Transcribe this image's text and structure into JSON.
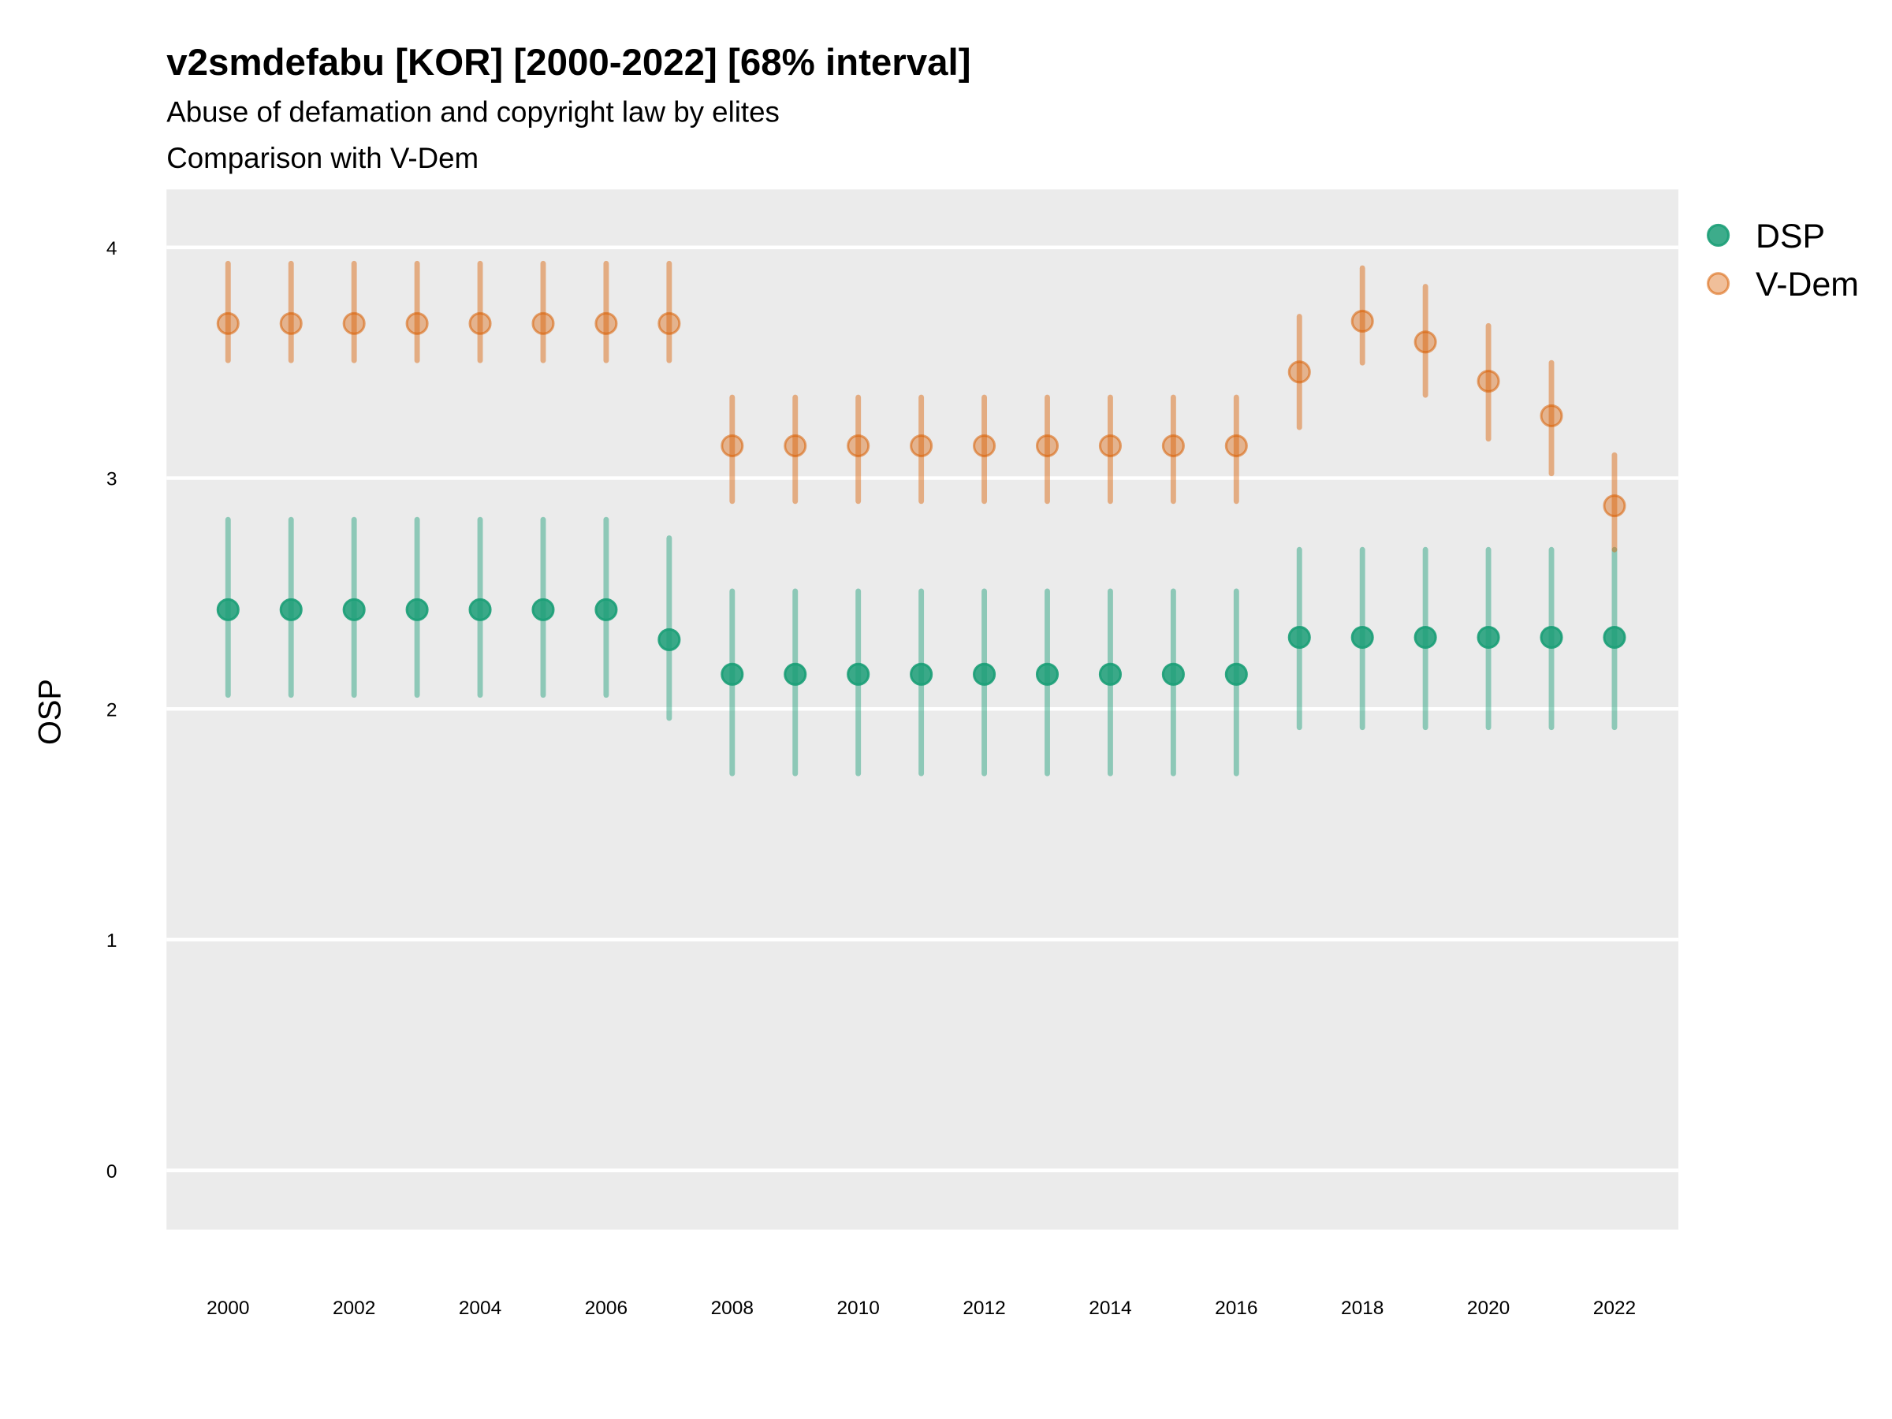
{
  "chart_data": {
    "type": "scatter",
    "title": "v2smdefabu [KOR] [2000-2022] [68% interval]",
    "subtitle": [
      "Abuse of defamation and copyright law by elites",
      "Comparison with V-Dem"
    ],
    "xlabel": "",
    "ylabel": "OSP",
    "ylim": [
      -0.25,
      4.25
    ],
    "yticks": [
      0,
      1,
      2,
      3,
      4
    ],
    "xticks": [
      2000,
      2002,
      2004,
      2006,
      2008,
      2010,
      2012,
      2014,
      2016,
      2018,
      2020,
      2022
    ],
    "grid": true,
    "legend_position": "right",
    "x": [
      2000,
      2001,
      2002,
      2003,
      2004,
      2005,
      2006,
      2007,
      2008,
      2009,
      2010,
      2011,
      2012,
      2013,
      2014,
      2015,
      2016,
      2017,
      2018,
      2019,
      2020,
      2021,
      2022
    ],
    "series": [
      {
        "name": "DSP",
        "color": "#1b9e77",
        "values": [
          2.43,
          2.43,
          2.43,
          2.43,
          2.43,
          2.43,
          2.43,
          2.3,
          2.15,
          2.15,
          2.15,
          2.15,
          2.15,
          2.15,
          2.15,
          2.15,
          2.15,
          2.31,
          2.31,
          2.31,
          2.31,
          2.31,
          2.31
        ],
        "lower": [
          2.06,
          2.06,
          2.06,
          2.06,
          2.06,
          2.06,
          2.06,
          1.96,
          1.72,
          1.72,
          1.72,
          1.72,
          1.72,
          1.72,
          1.72,
          1.72,
          1.72,
          1.92,
          1.92,
          1.92,
          1.92,
          1.92,
          1.92
        ],
        "upper": [
          2.82,
          2.82,
          2.82,
          2.82,
          2.82,
          2.82,
          2.82,
          2.74,
          2.51,
          2.51,
          2.51,
          2.51,
          2.51,
          2.51,
          2.51,
          2.51,
          2.51,
          2.69,
          2.69,
          2.69,
          2.69,
          2.69,
          2.69
        ]
      },
      {
        "name": "V-Dem",
        "color": "#d95f02",
        "values": [
          3.67,
          3.67,
          3.67,
          3.67,
          3.67,
          3.67,
          3.67,
          3.67,
          3.14,
          3.14,
          3.14,
          3.14,
          3.14,
          3.14,
          3.14,
          3.14,
          3.14,
          3.46,
          3.68,
          3.59,
          3.42,
          3.27,
          2.88
        ],
        "lower": [
          3.51,
          3.51,
          3.51,
          3.51,
          3.51,
          3.51,
          3.51,
          3.51,
          2.9,
          2.9,
          2.9,
          2.9,
          2.9,
          2.9,
          2.9,
          2.9,
          2.9,
          3.22,
          3.5,
          3.36,
          3.17,
          3.02,
          2.69
        ],
        "upper": [
          3.93,
          3.93,
          3.93,
          3.93,
          3.93,
          3.93,
          3.93,
          3.93,
          3.35,
          3.35,
          3.35,
          3.35,
          3.35,
          3.35,
          3.35,
          3.35,
          3.35,
          3.7,
          3.91,
          3.83,
          3.66,
          3.5,
          3.1
        ]
      }
    ]
  }
}
